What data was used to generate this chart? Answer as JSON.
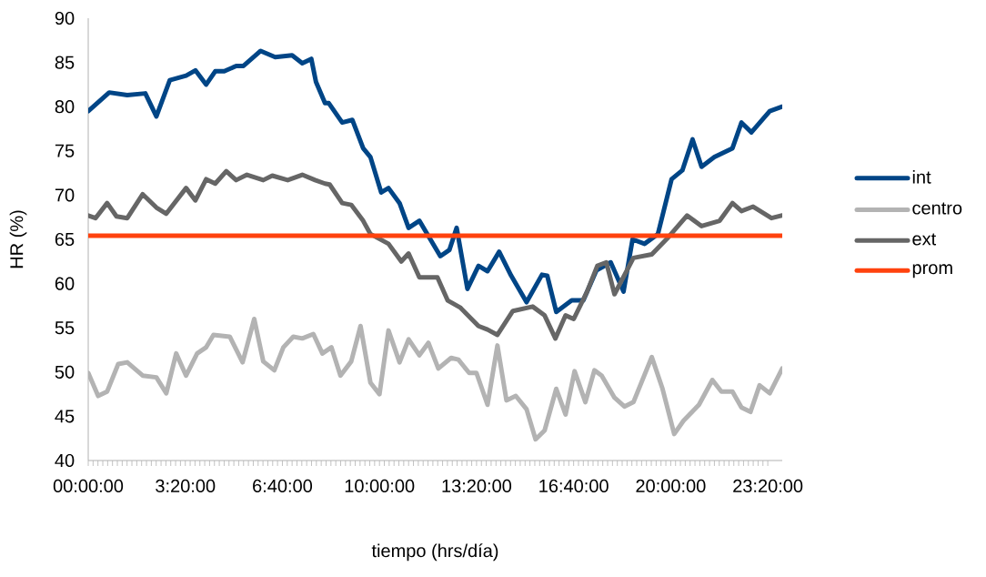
{
  "chart_data": {
    "type": "line",
    "xlabel": "tiempo  (hrs/día)",
    "ylabel": "HR (%)",
    "xlim": [
      0,
      23.83
    ],
    "ylim": [
      40,
      90
    ],
    "yticks": [
      40,
      45,
      50,
      55,
      60,
      65,
      70,
      75,
      80,
      85,
      90
    ],
    "xticks": [
      {
        "value": 0,
        "label": "00:00:00"
      },
      {
        "value": 3.3333333333,
        "label": "3:20:00"
      },
      {
        "value": 6.6666666667,
        "label": "6:40:00"
      },
      {
        "value": 10,
        "label": "10:00:00"
      },
      {
        "value": 13.3333333333,
        "label": "13:20:00"
      },
      {
        "value": 16.6666666667,
        "label": "16:40:00"
      },
      {
        "value": 20,
        "label": "20:00:00"
      },
      {
        "value": 23.3333333333,
        "label": "23:20:00"
      }
    ],
    "grid": false,
    "legend": "right",
    "marker": "none",
    "line_style": "solid",
    "series": [
      {
        "name": "int",
        "color": "#004586",
        "x": [
          0,
          0.72,
          1.34,
          1.96,
          2.34,
          2.8,
          3.36,
          3.68,
          4.05,
          4.36,
          4.67,
          5.08,
          5.33,
          5.92,
          6.42,
          7.0,
          7.35,
          7.66,
          7.82,
          8.13,
          8.26,
          8.72,
          9.07,
          9.44,
          9.69,
          10.06,
          10.31,
          10.69,
          11.0,
          11.37,
          12.09,
          12.4,
          12.65,
          13.02,
          13.4,
          13.71,
          14.11,
          14.52,
          15.05,
          15.58,
          15.76,
          16.07,
          16.6,
          17.0,
          17.45,
          17.94,
          18.38,
          18.69,
          19.1,
          19.56,
          20.03,
          20.4,
          20.75,
          21.06,
          21.5,
          22.12,
          22.43,
          22.77,
          23.4,
          23.83
        ],
        "values": [
          79.5,
          81.6,
          81.3,
          81.5,
          78.9,
          83.0,
          83.5,
          84.1,
          82.5,
          84.0,
          84.0,
          84.6,
          84.6,
          86.3,
          85.6,
          85.8,
          84.9,
          85.4,
          82.8,
          80.4,
          80.4,
          78.2,
          78.5,
          75.3,
          74.3,
          70.3,
          70.8,
          69.1,
          66.3,
          67.1,
          63.1,
          63.8,
          66.3,
          59.4,
          62.0,
          61.4,
          63.6,
          60.9,
          57.9,
          61.0,
          60.9,
          56.8,
          58.1,
          58.1,
          61.5,
          62.4,
          59.1,
          65.0,
          64.5,
          65.6,
          71.8,
          72.8,
          76.3,
          73.2,
          74.3,
          75.3,
          78.2,
          77.1,
          79.5,
          80.0
        ]
      },
      {
        "name": "centro",
        "color": "#b3b3b3",
        "x": [
          0,
          0.34,
          0.65,
          1.03,
          1.34,
          1.87,
          2.34,
          2.68,
          3.02,
          3.36,
          3.74,
          4.05,
          4.3,
          4.86,
          5.3,
          5.7,
          6.01,
          6.39,
          6.7,
          7.04,
          7.35,
          7.73,
          8.04,
          8.35,
          8.66,
          9.03,
          9.35,
          9.69,
          10.0,
          10.31,
          10.69,
          11.0,
          11.37,
          11.68,
          12.02,
          12.46,
          12.71,
          13.08,
          13.33,
          13.71,
          14.05,
          14.36,
          14.68,
          15.05,
          15.36,
          15.67,
          16.07,
          16.39,
          16.7,
          17.07,
          17.38,
          17.63,
          18.07,
          18.41,
          18.72,
          19.35,
          19.72,
          20.12,
          20.44,
          20.97,
          21.43,
          21.74,
          22.12,
          22.43,
          22.74,
          23.05,
          23.4,
          23.83
        ],
        "values": [
          49.9,
          47.3,
          47.8,
          50.9,
          51.1,
          49.6,
          49.4,
          47.6,
          52.1,
          49.6,
          52.1,
          52.8,
          54.2,
          54.0,
          51.1,
          56.0,
          51.2,
          50.2,
          52.8,
          54.0,
          53.8,
          54.3,
          52.1,
          52.8,
          49.6,
          51.2,
          55.2,
          48.8,
          47.5,
          54.7,
          51.1,
          53.7,
          51.9,
          53.3,
          50.4,
          51.6,
          51.4,
          49.9,
          49.9,
          46.3,
          53.0,
          46.8,
          47.3,
          45.8,
          42.4,
          43.4,
          48.1,
          45.2,
          50.1,
          46.6,
          50.2,
          49.6,
          47.1,
          46.1,
          46.6,
          51.7,
          48.1,
          43.0,
          44.5,
          46.3,
          49.1,
          47.8,
          47.8,
          46.0,
          45.5,
          48.5,
          47.6,
          50.4
        ]
      },
      {
        "name": "ext",
        "color": "#666666",
        "x": [
          0,
          0.25,
          0.65,
          0.97,
          1.34,
          1.87,
          2.34,
          2.68,
          3.36,
          3.68,
          4.05,
          4.36,
          4.74,
          5.08,
          5.45,
          6.01,
          6.32,
          6.85,
          7.35,
          7.79,
          8.13,
          8.29,
          8.72,
          9.03,
          9.44,
          9.69,
          10.31,
          10.75,
          11.0,
          11.37,
          11.99,
          12.34,
          12.77,
          13.4,
          13.71,
          14.05,
          14.58,
          15.26,
          15.67,
          16.04,
          16.39,
          16.67,
          17.13,
          17.48,
          17.79,
          18.07,
          18.72,
          19.35,
          19.88,
          20.56,
          21.06,
          21.68,
          22.12,
          22.43,
          22.83,
          23.46,
          23.83
        ],
        "values": [
          67.7,
          67.4,
          69.1,
          67.6,
          67.4,
          70.1,
          68.6,
          67.9,
          70.8,
          69.4,
          71.8,
          71.3,
          72.7,
          71.7,
          72.3,
          71.7,
          72.2,
          71.7,
          72.3,
          71.7,
          71.3,
          71.2,
          69.1,
          68.9,
          67.1,
          65.6,
          64.5,
          62.5,
          63.4,
          60.7,
          60.7,
          58.1,
          57.3,
          55.2,
          54.8,
          54.2,
          56.9,
          57.4,
          56.4,
          53.8,
          56.4,
          56.0,
          59.1,
          62.0,
          62.4,
          58.8,
          62.9,
          63.3,
          65.1,
          67.7,
          66.5,
          67.1,
          69.1,
          68.2,
          68.7,
          67.4,
          67.7
        ]
      },
      {
        "name": "prom",
        "color": "#ff420e",
        "x": [
          0,
          23.83
        ],
        "values": [
          65.4,
          65.4
        ]
      }
    ]
  }
}
